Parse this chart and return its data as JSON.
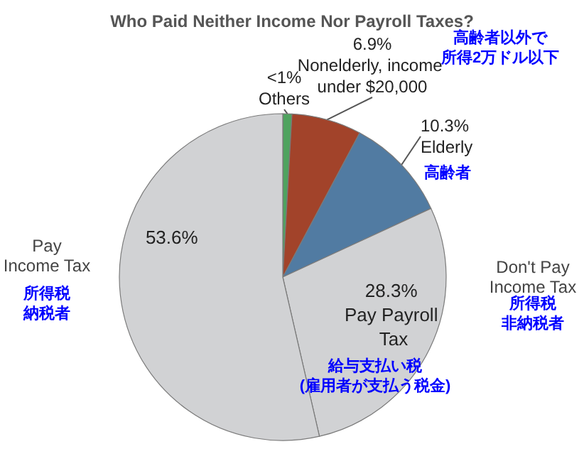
{
  "chart_data": {
    "type": "pie",
    "title": "Who Paid Neither Income Nor Payroll Taxes?",
    "categories": [
      "Others",
      "Nonelderly, income under $20,000",
      "Elderly",
      "Pay Payroll Tax",
      null
    ],
    "values": [
      0.9,
      6.9,
      10.3,
      28.3,
      53.6
    ],
    "value_labels": [
      "<1%",
      "6.9%",
      "10.3%",
      "28.3%",
      "53.6%"
    ],
    "colors": [
      "#4fa35f",
      "#a2432a",
      "#517ba2",
      "#d1d2d4",
      "#d1d2d4"
    ],
    "annotations": [
      "Pay\nIncome Tax",
      "所得税納税者",
      "Don't Pay\nIncome Tax",
      "所得税非納税者",
      "高齢者以外で所得2万ドル以下",
      "高齢者",
      "給与支払い税(雇用者が支払う税金)"
    ],
    "legend": false
  }
}
